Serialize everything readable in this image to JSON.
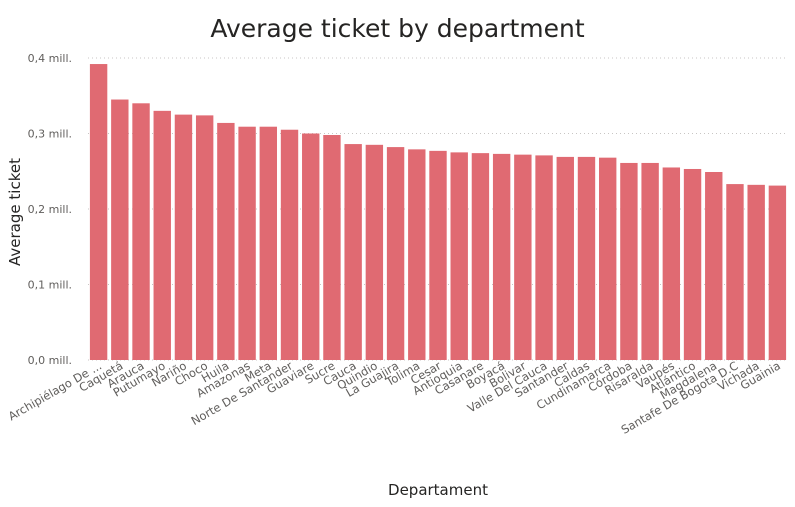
{
  "chart_data": {
    "type": "bar",
    "title": "Average ticket by department",
    "xlabel": "Departament",
    "ylabel": "Average ticket",
    "ylim": [
      0,
      0.4
    ],
    "y_ticks": [
      {
        "value": 0.0,
        "label": "0,0 mill."
      },
      {
        "value": 0.1,
        "label": "0,1 mill."
      },
      {
        "value": 0.2,
        "label": "0,2 mill."
      },
      {
        "value": 0.3,
        "label": "0,3 mill."
      },
      {
        "value": 0.4,
        "label": "0,4 mill."
      }
    ],
    "grid": true,
    "bar_color": "#e06a72",
    "categories": [
      "Archipiélago De ...",
      "Caquetá",
      "Arauca",
      "Putumayo",
      "Nariño",
      "Choco",
      "Huila",
      "Amazonas",
      "Meta",
      "Norte De Santander",
      "Guaviare",
      "Sucre",
      "Cauca",
      "Quindio",
      "La Guajira",
      "Tolima",
      "Cesar",
      "Antioquia",
      "Casanare",
      "Boyacá",
      "Bolivar",
      "Valle Del Cauca",
      "Santander",
      "Caldas",
      "Cundinamarca",
      "Córdoba",
      "Risaralda",
      "Vaupés",
      "Atlántico",
      "Magdalena",
      "Santafe De Bogota D.C",
      "Vichada",
      "Guainia"
    ],
    "values": [
      0.392,
      0.345,
      0.34,
      0.33,
      0.325,
      0.324,
      0.314,
      0.309,
      0.309,
      0.305,
      0.3,
      0.298,
      0.286,
      0.285,
      0.282,
      0.279,
      0.277,
      0.275,
      0.274,
      0.273,
      0.272,
      0.271,
      0.269,
      0.269,
      0.268,
      0.261,
      0.261,
      0.255,
      0.253,
      0.249,
      0.233,
      0.232,
      0.231
    ]
  }
}
